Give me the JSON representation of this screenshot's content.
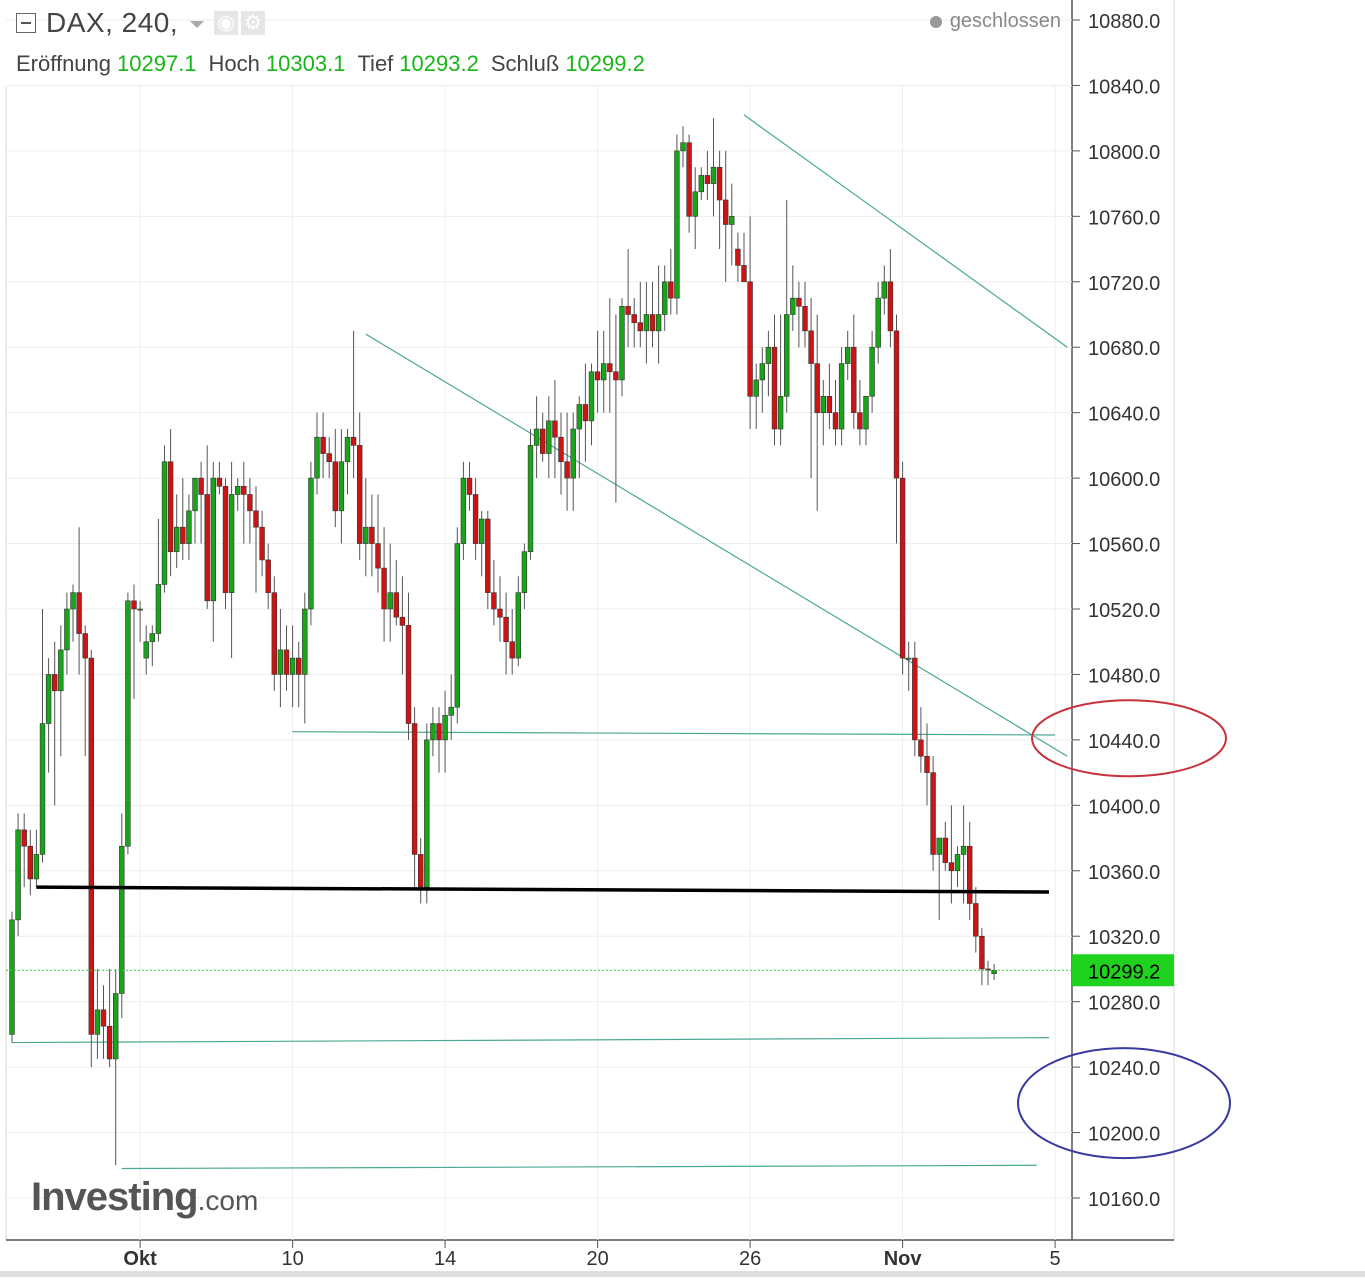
{
  "header": {
    "symbol": "DAX, 240,",
    "status": "geschlossen",
    "ohlc": {
      "open_label": "Eröffnung",
      "open": "10297.1",
      "high_label": "Hoch",
      "high": "10303.1",
      "low_label": "Tief",
      "low": "10293.2",
      "close_label": "Schluß",
      "close": "10299.2"
    }
  },
  "logo": {
    "brand": "Investing",
    "suffix": ".com"
  },
  "chart_data": {
    "type": "candlestick",
    "title": "",
    "xlabel": "",
    "ylabel": "",
    "ylim": [
      10120,
      10890
    ],
    "y_ticks": [
      "10880.0",
      "10840.0",
      "10800.0",
      "10760.0",
      "10720.0",
      "10680.0",
      "10640.0",
      "10600.0",
      "10560.0",
      "10520.0",
      "10480.0",
      "10440.0",
      "10400.0",
      "10360.0",
      "10320.0",
      "10280.0",
      "10240.0",
      "10200.0",
      "10160.0"
    ],
    "x_ticks": [
      {
        "label": "Okt",
        "bar": 21,
        "bold": true
      },
      {
        "label": "10",
        "bar": 46,
        "bold": false
      },
      {
        "label": "14",
        "bar": 71,
        "bold": false
      },
      {
        "label": "20",
        "bar": 96,
        "bold": false
      },
      {
        "label": "26",
        "bar": 121,
        "bold": false
      },
      {
        "label": "Nov",
        "bar": 146,
        "bold": true
      },
      {
        "label": "5",
        "bar": 171,
        "bold": false
      }
    ],
    "last_price": "10299.2",
    "last_price_value": 10299.2,
    "grid": true,
    "up_color": "#19a519",
    "down_color": "#cc1414",
    "annotation_color": "#4aa894",
    "support_color": "#000000",
    "red_circle_color": "#c8323c",
    "blue_circle_color": "#3a3aa0",
    "candles_ohlc": [
      [
        10260,
        10335,
        10255,
        10330
      ],
      [
        10330,
        10395,
        10320,
        10385
      ],
      [
        10385,
        10395,
        10350,
        10375
      ],
      [
        10375,
        10385,
        10345,
        10355
      ],
      [
        10355,
        10385,
        10350,
        10370
      ],
      [
        10370,
        10520,
        10365,
        10450
      ],
      [
        10450,
        10490,
        10420,
        10480
      ],
      [
        10480,
        10500,
        10400,
        10470
      ],
      [
        10470,
        10510,
        10430,
        10495
      ],
      [
        10495,
        10530,
        10480,
        10520
      ],
      [
        10520,
        10535,
        10500,
        10530
      ],
      [
        10530,
        10570,
        10480,
        10505
      ],
      [
        10505,
        10510,
        10430,
        10490
      ],
      [
        10490,
        10495,
        10240,
        10260
      ],
      [
        10260,
        10300,
        10245,
        10275
      ],
      [
        10275,
        10290,
        10245,
        10265
      ],
      [
        10265,
        10300,
        10240,
        10245
      ],
      [
        10245,
        10300,
        10180,
        10285
      ],
      [
        10285,
        10395,
        10270,
        10375
      ],
      [
        10375,
        10530,
        10370,
        10525
      ],
      [
        10525,
        10535,
        10465,
        10520
      ],
      [
        10520,
        10525,
        10500,
        10520
      ],
      [
        10490,
        10510,
        10480,
        10500
      ],
      [
        10500,
        10510,
        10485,
        10505
      ],
      [
        10505,
        10575,
        10500,
        10535
      ],
      [
        10535,
        10620,
        10530,
        10610
      ],
      [
        10610,
        10630,
        10540,
        10555
      ],
      [
        10555,
        10590,
        10545,
        10570
      ],
      [
        10570,
        10600,
        10550,
        10560
      ],
      [
        10560,
        10590,
        10550,
        10580
      ],
      [
        10580,
        10600,
        10560,
        10600
      ],
      [
        10600,
        10610,
        10560,
        10590
      ],
      [
        10590,
        10620,
        10520,
        10525
      ],
      [
        10525,
        10610,
        10500,
        10600
      ],
      [
        10600,
        10610,
        10590,
        10595
      ],
      [
        10595,
        10600,
        10520,
        10530
      ],
      [
        10530,
        10610,
        10490,
        10590
      ],
      [
        10590,
        10600,
        10580,
        10595
      ],
      [
        10595,
        10610,
        10560,
        10590
      ],
      [
        10590,
        10600,
        10560,
        10580
      ],
      [
        10580,
        10595,
        10530,
        10570
      ],
      [
        10570,
        10580,
        10540,
        10550
      ],
      [
        10550,
        10560,
        10520,
        10530
      ],
      [
        10530,
        10540,
        10470,
        10480
      ],
      [
        10480,
        10520,
        10460,
        10495
      ],
      [
        10495,
        10510,
        10470,
        10480
      ],
      [
        10480,
        10510,
        10460,
        10490
      ],
      [
        10490,
        10500,
        10460,
        10480
      ],
      [
        10480,
        10530,
        10450,
        10520
      ],
      [
        10520,
        10610,
        10510,
        10600
      ],
      [
        10600,
        10640,
        10590,
        10625
      ],
      [
        10625,
        10640,
        10600,
        10615
      ],
      [
        10615,
        10625,
        10600,
        10610
      ],
      [
        10610,
        10630,
        10570,
        10580
      ],
      [
        10580,
        10630,
        10560,
        10610
      ],
      [
        10610,
        10630,
        10590,
        10625
      ],
      [
        10625,
        10690,
        10600,
        10620
      ],
      [
        10620,
        10640,
        10550,
        10560
      ],
      [
        10560,
        10600,
        10540,
        10570
      ],
      [
        10570,
        10590,
        10540,
        10560
      ],
      [
        10560,
        10590,
        10530,
        10545
      ],
      [
        10545,
        10570,
        10500,
        10520
      ],
      [
        10520,
        10560,
        10500,
        10530
      ],
      [
        10530,
        10550,
        10510,
        10515
      ],
      [
        10515,
        10540,
        10480,
        10510
      ],
      [
        10510,
        10530,
        10440,
        10450
      ],
      [
        10450,
        10460,
        10350,
        10370
      ],
      [
        10370,
        10380,
        10340,
        10350
      ],
      [
        10350,
        10450,
        10340,
        10440
      ],
      [
        10440,
        10460,
        10430,
        10450
      ],
      [
        10450,
        10460,
        10420,
        10440
      ],
      [
        10440,
        10470,
        10420,
        10455
      ],
      [
        10455,
        10480,
        10440,
        10460
      ],
      [
        10460,
        10570,
        10450,
        10560
      ],
      [
        10560,
        10610,
        10550,
        10600
      ],
      [
        10600,
        10610,
        10580,
        10590
      ],
      [
        10590,
        10600,
        10550,
        10560
      ],
      [
        10560,
        10580,
        10540,
        10575
      ],
      [
        10575,
        10580,
        10520,
        10530
      ],
      [
        10530,
        10550,
        10510,
        10520
      ],
      [
        10520,
        10540,
        10500,
        10515
      ],
      [
        10515,
        10530,
        10480,
        10500
      ],
      [
        10500,
        10520,
        10480,
        10490
      ],
      [
        10490,
        10540,
        10485,
        10530
      ],
      [
        10530,
        10560,
        10520,
        10555
      ],
      [
        10555,
        10630,
        10550,
        10620
      ],
      [
        10620,
        10650,
        10600,
        10630
      ],
      [
        10630,
        10640,
        10610,
        10615
      ],
      [
        10615,
        10650,
        10600,
        10635
      ],
      [
        10635,
        10660,
        10600,
        10625
      ],
      [
        10625,
        10640,
        10590,
        10610
      ],
      [
        10610,
        10640,
        10580,
        10600
      ],
      [
        10600,
        10640,
        10580,
        10630
      ],
      [
        10630,
        10650,
        10600,
        10645
      ],
      [
        10645,
        10670,
        10610,
        10635
      ],
      [
        10635,
        10670,
        10620,
        10665
      ],
      [
        10665,
        10690,
        10640,
        10660
      ],
      [
        10660,
        10690,
        10640,
        10670
      ],
      [
        10670,
        10710,
        10640,
        10665
      ],
      [
        10665,
        10700,
        10585,
        10660
      ],
      [
        10660,
        10710,
        10650,
        10705
      ],
      [
        10705,
        10740,
        10680,
        10700
      ],
      [
        10700,
        10710,
        10680,
        10695
      ],
      [
        10695,
        10720,
        10680,
        10690
      ],
      [
        10690,
        10720,
        10670,
        10700
      ],
      [
        10700,
        10720,
        10680,
        10690
      ],
      [
        10690,
        10730,
        10670,
        10700
      ],
      [
        10700,
        10730,
        10690,
        10720
      ],
      [
        10720,
        10740,
        10700,
        10710
      ],
      [
        10710,
        10810,
        10700,
        10800
      ],
      [
        10800,
        10815,
        10790,
        10805
      ],
      [
        10805,
        10810,
        10750,
        10760
      ],
      [
        10760,
        10790,
        10740,
        10775
      ],
      [
        10775,
        10790,
        10770,
        10785
      ],
      [
        10785,
        10800,
        10770,
        10780
      ],
      [
        10780,
        10820,
        10760,
        10790
      ],
      [
        10790,
        10800,
        10740,
        10770
      ],
      [
        10770,
        10800,
        10720,
        10755
      ],
      [
        10755,
        10780,
        10730,
        10760
      ],
      [
        10740,
        10750,
        10720,
        10730
      ],
      [
        10730,
        10750,
        10720,
        10720
      ],
      [
        10720,
        10760,
        10630,
        10650
      ],
      [
        10650,
        10670,
        10630,
        10660
      ],
      [
        10660,
        10680,
        10640,
        10670
      ],
      [
        10670,
        10690,
        10650,
        10680
      ],
      [
        10680,
        10700,
        10620,
        10630
      ],
      [
        10630,
        10700,
        10620,
        10650
      ],
      [
        10650,
        10770,
        10640,
        10700
      ],
      [
        10700,
        10730,
        10690,
        10710
      ],
      [
        10710,
        10720,
        10680,
        10705
      ],
      [
        10705,
        10720,
        10680,
        10690
      ],
      [
        10690,
        10710,
        10600,
        10670
      ],
      [
        10670,
        10700,
        10580,
        10640
      ],
      [
        10640,
        10660,
        10620,
        10650
      ],
      [
        10650,
        10670,
        10630,
        10640
      ],
      [
        10640,
        10660,
        10620,
        10630
      ],
      [
        10630,
        10680,
        10620,
        10670
      ],
      [
        10670,
        10690,
        10660,
        10680
      ],
      [
        10680,
        10700,
        10630,
        10640
      ],
      [
        10640,
        10660,
        10620,
        10630
      ],
      [
        10630,
        10650,
        10620,
        10650
      ],
      [
        10650,
        10690,
        10640,
        10680
      ],
      [
        10680,
        10720,
        10670,
        10710
      ],
      [
        10710,
        10730,
        10700,
        10720
      ],
      [
        10720,
        10740,
        10680,
        10690
      ],
      [
        10690,
        10700,
        10560,
        10600
      ],
      [
        10600,
        10610,
        10480,
        10490
      ],
      [
        10490,
        10500,
        10470,
        10490
      ],
      [
        10490,
        10500,
        10430,
        10440
      ],
      [
        10440,
        10460,
        10420,
        10430
      ],
      [
        10430,
        10450,
        10400,
        10420
      ],
      [
        10420,
        10430,
        10360,
        10370
      ],
      [
        10370,
        10380,
        10330,
        10380
      ],
      [
        10380,
        10390,
        10360,
        10365
      ],
      [
        10365,
        10400,
        10340,
        10360
      ],
      [
        10360,
        10375,
        10350,
        10370
      ],
      [
        10370,
        10400,
        10340,
        10375
      ],
      [
        10375,
        10390,
        10330,
        10340
      ],
      [
        10340,
        10350,
        10310,
        10320
      ],
      [
        10320,
        10325,
        10290,
        10300
      ],
      [
        10300,
        10305,
        10290,
        10299.2
      ],
      [
        10297.1,
        10303.1,
        10293.2,
        10299.2
      ]
    ]
  }
}
